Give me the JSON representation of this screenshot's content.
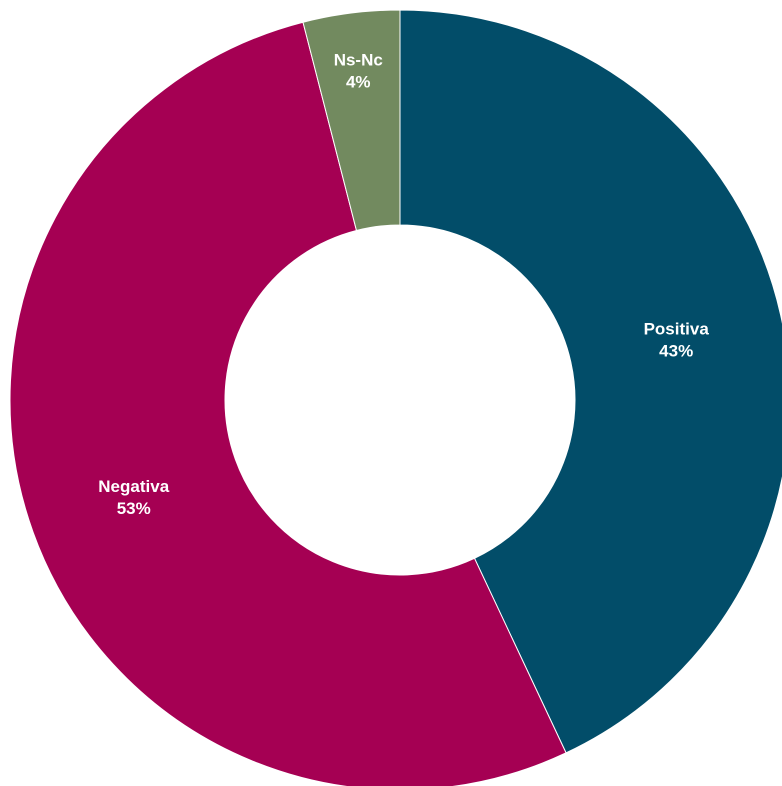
{
  "chart_data": {
    "type": "pie",
    "variant": "donut",
    "title": "",
    "start_angle": "12 o'clock",
    "direction": "clockwise",
    "slices": [
      {
        "label": "Positiva",
        "value": 43,
        "value_label": "43%",
        "color": "#024D69"
      },
      {
        "label": "Negativa",
        "value": 53,
        "value_label": "53%",
        "color": "#A50053"
      },
      {
        "label": "Ns-Nc",
        "value": 4,
        "value_label": "4%",
        "color": "#728A5F"
      }
    ],
    "label_color": "#FFFFFF",
    "legend": "none"
  }
}
